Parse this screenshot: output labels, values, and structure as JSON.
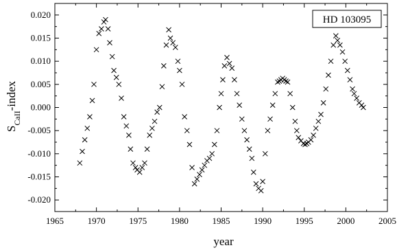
{
  "chart_data": {
    "type": "scatter",
    "title": "",
    "xlabel": "year",
    "ylabel_main": "S",
    "ylabel_sub": "CaII",
    "ylabel_suffix": "-index",
    "xlim": [
      1965,
      2005
    ],
    "ylim": [
      -0.0225,
      0.0225
    ],
    "x_ticks": [
      1965,
      1970,
      1975,
      1980,
      1985,
      1990,
      1995,
      2000,
      2005
    ],
    "y_ticks": [
      -0.02,
      -0.015,
      -0.01,
      -0.005,
      0.0,
      0.005,
      0.01,
      0.015,
      0.02
    ],
    "x_tick_labels": [
      "1965",
      "1970",
      "1975",
      "1980",
      "1985",
      "1990",
      "1995",
      "2000",
      "2005"
    ],
    "y_tick_labels": [
      "-0.020",
      "-0.015",
      "-0.010",
      "-0.005",
      "0.000",
      "0.005",
      "0.010",
      "0.015",
      "0.020"
    ],
    "grid": false,
    "marker": "x",
    "series": [
      {
        "name": "HD 103095",
        "x": [
          1968.0,
          1968.3,
          1968.6,
          1968.9,
          1969.2,
          1969.5,
          1969.7,
          1970.0,
          1970.3,
          1970.6,
          1970.9,
          1971.1,
          1971.4,
          1971.6,
          1971.9,
          1972.1,
          1972.4,
          1972.7,
          1973.0,
          1973.3,
          1973.6,
          1973.9,
          1974.1,
          1974.4,
          1974.7,
          1974.9,
          1975.2,
          1975.5,
          1975.8,
          1976.1,
          1976.4,
          1976.7,
          1977.0,
          1977.3,
          1977.6,
          1977.9,
          1978.1,
          1978.4,
          1978.7,
          1978.9,
          1979.2,
          1979.5,
          1979.8,
          1980.0,
          1980.3,
          1980.6,
          1980.9,
          1981.2,
          1981.5,
          1981.8,
          1982.1,
          1982.4,
          1982.7,
          1983.0,
          1983.3,
          1983.6,
          1983.9,
          1984.2,
          1984.5,
          1984.8,
          1985.0,
          1985.2,
          1985.4,
          1985.7,
          1986.0,
          1986.3,
          1986.6,
          1986.9,
          1987.2,
          1987.5,
          1987.8,
          1988.1,
          1988.4,
          1988.7,
          1988.9,
          1989.2,
          1989.5,
          1989.8,
          1990.0,
          1990.3,
          1990.6,
          1990.9,
          1991.2,
          1991.5,
          1991.8,
          1992.0,
          1992.2,
          1992.4,
          1992.6,
          1992.8,
          1993.0,
          1993.3,
          1993.6,
          1993.9,
          1994.1,
          1994.3,
          1994.6,
          1994.9,
          1995.1,
          1995.3,
          1995.5,
          1995.8,
          1996.1,
          1996.4,
          1996.7,
          1997.0,
          1997.3,
          1997.6,
          1997.9,
          1998.2,
          1998.5,
          1998.8,
          1999.0,
          1999.3,
          1999.6,
          1999.9,
          2000.2,
          2000.5,
          2000.8,
          2001.0,
          2001.3,
          2001.6,
          2001.9,
          2002.1
        ],
        "y": [
          -0.012,
          -0.0095,
          -0.007,
          -0.0045,
          -0.002,
          0.0015,
          0.005,
          0.0125,
          0.016,
          0.017,
          0.0185,
          0.019,
          0.017,
          0.014,
          0.011,
          0.008,
          0.0065,
          0.005,
          0.002,
          -0.002,
          -0.004,
          -0.006,
          -0.009,
          -0.012,
          -0.013,
          -0.0135,
          -0.014,
          -0.013,
          -0.012,
          -0.009,
          -0.006,
          -0.0045,
          -0.003,
          -0.001,
          0.0,
          0.0045,
          0.009,
          0.0135,
          0.0168,
          0.015,
          0.014,
          0.013,
          0.01,
          0.008,
          0.005,
          -0.002,
          -0.005,
          -0.008,
          -0.013,
          -0.0165,
          -0.0155,
          -0.0145,
          -0.0135,
          -0.0125,
          -0.0115,
          -0.011,
          -0.01,
          -0.008,
          -0.005,
          0.0,
          0.003,
          0.006,
          0.009,
          0.0108,
          0.0095,
          0.0085,
          0.006,
          0.003,
          0.0005,
          -0.0025,
          -0.005,
          -0.007,
          -0.009,
          -0.011,
          -0.014,
          -0.0165,
          -0.0175,
          -0.018,
          -0.016,
          -0.01,
          -0.005,
          -0.0025,
          0.0005,
          0.003,
          0.0055,
          0.0057,
          0.006,
          0.0063,
          0.006,
          0.0057,
          0.0055,
          0.003,
          0.0,
          -0.003,
          -0.005,
          -0.0065,
          -0.0072,
          -0.0078,
          -0.008,
          -0.0078,
          -0.0075,
          -0.007,
          -0.006,
          -0.0045,
          -0.003,
          -0.0015,
          0.001,
          0.004,
          0.007,
          0.01,
          0.0135,
          0.0155,
          0.0145,
          0.0135,
          0.012,
          0.01,
          0.008,
          0.006,
          0.004,
          0.003,
          0.002,
          0.001,
          0.0005,
          0.0
        ]
      }
    ],
    "legend": {
      "text": "HD 103095",
      "placement": "top-right"
    }
  }
}
